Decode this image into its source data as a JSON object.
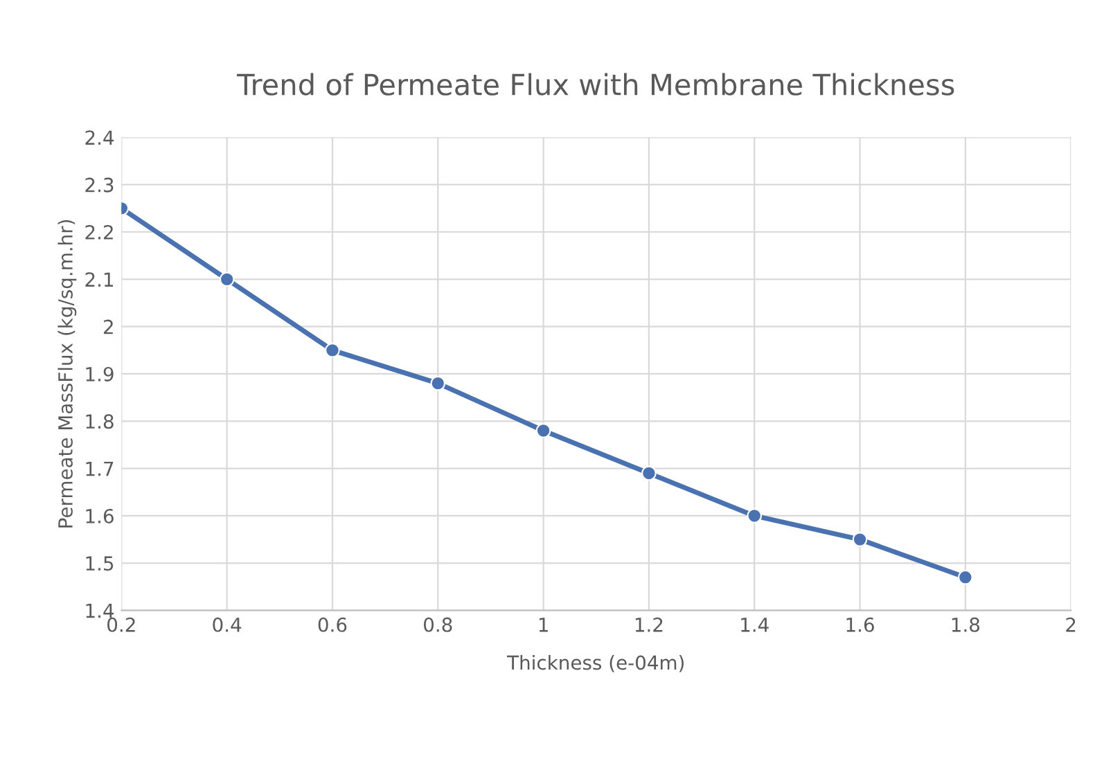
{
  "chart_data": {
    "type": "line",
    "title": "Trend of Permeate Flux with Membrane Thickness",
    "xlabel": "Thickness (e-04m)",
    "ylabel": "Permeate MassFlux (kg/sq.m.hr)",
    "x": [
      0.2,
      0.4,
      0.6,
      0.8,
      1.0,
      1.2,
      1.4,
      1.6,
      1.8
    ],
    "series": [
      {
        "color": "#4a72b0",
        "values": [
          2.25,
          2.1,
          1.95,
          1.88,
          1.78,
          1.69,
          1.6,
          1.55,
          1.47
        ]
      }
    ],
    "xlim": [
      0.2,
      2
    ],
    "xticks": [
      0.2,
      0.4,
      0.6,
      0.8,
      1,
      1.2,
      1.4,
      1.6,
      1.8,
      2
    ],
    "ylim": [
      1.4,
      2.4
    ],
    "yticks": [
      1.4,
      1.5,
      1.6,
      1.7,
      1.8,
      1.9,
      2,
      2.1,
      2.2,
      2.3,
      2.4
    ],
    "grid": true,
    "marker": "circle",
    "line_style": "solid"
  }
}
